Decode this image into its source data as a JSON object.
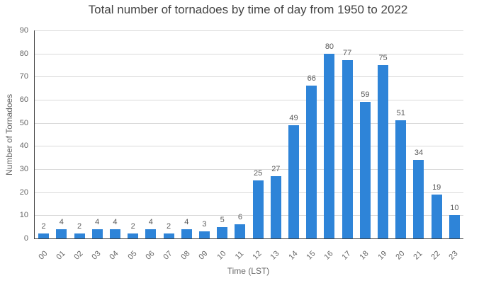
{
  "chart_data": {
    "type": "bar",
    "title": "Total number of tornadoes by time of day from 1950 to 2022",
    "xlabel": "Time (LST)",
    "ylabel": "Number of Tornadoes",
    "categories": [
      "00",
      "01",
      "02",
      "03",
      "04",
      "05",
      "06",
      "07",
      "08",
      "09",
      "10",
      "11",
      "12",
      "13",
      "14",
      "15",
      "16",
      "17",
      "18",
      "19",
      "20",
      "21",
      "22",
      "23"
    ],
    "values": [
      2,
      4,
      2,
      4,
      4,
      2,
      4,
      2,
      4,
      3,
      5,
      6,
      25,
      27,
      49,
      66,
      80,
      77,
      59,
      75,
      51,
      34,
      19,
      10
    ],
    "ylim": [
      0,
      90
    ],
    "ytick_step": 10,
    "yticks": [
      0,
      10,
      20,
      30,
      40,
      50,
      60,
      70,
      80,
      90
    ],
    "grid": "horizontal",
    "legend": "none",
    "value_labels_shown": true,
    "x_tick_rotation_deg": -45,
    "colors": {
      "bar": "#2e84d8",
      "grid": "#d9d9d9",
      "axis_line": "#404040",
      "tick_text": "#666666",
      "value_label_text": "#5a5a5a",
      "title_text": "#444444"
    }
  }
}
